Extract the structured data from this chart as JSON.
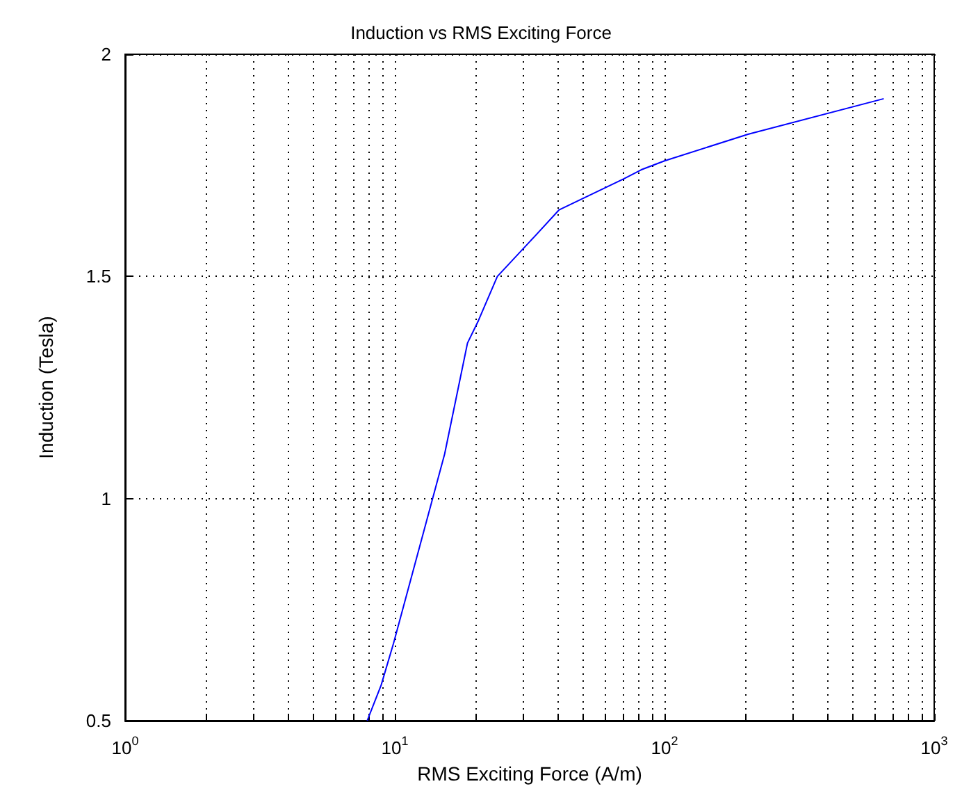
{
  "chart_data": {
    "type": "line",
    "title": "Induction vs RMS Exciting Force",
    "xlabel": "RMS Exciting Force (A/m)",
    "ylabel": "Induction (Tesla)",
    "log": "x",
    "grid": true,
    "marker": "none",
    "line_style": "solid",
    "xlim": [
      1,
      1000
    ],
    "xticks": [
      {
        "value": 1,
        "label": "10$^{0}$"
      },
      {
        "value": 10,
        "label": "10$^{1}$"
      },
      {
        "value": 100,
        "label": "10$^{2}$"
      },
      {
        "value": 1000,
        "label": "10$^{3}$"
      }
    ],
    "ylim": [
      0.5,
      2
    ],
    "yticks": [
      0.5,
      1,
      1.5,
      2
    ],
    "series": [
      {
        "color": "#0000ff",
        "x": [
          7.9,
          8.9,
          9.9,
          15.3,
          18.6,
          20.4,
          24,
          33,
          40.7,
          70.8,
          82,
          100,
          204,
          650
        ],
        "values": [
          0.5,
          0.58,
          0.675,
          1.1,
          1.35,
          1.4,
          1.5,
          1.59,
          1.65,
          1.72,
          1.74,
          1.76,
          1.82,
          1.9
        ]
      }
    ]
  }
}
